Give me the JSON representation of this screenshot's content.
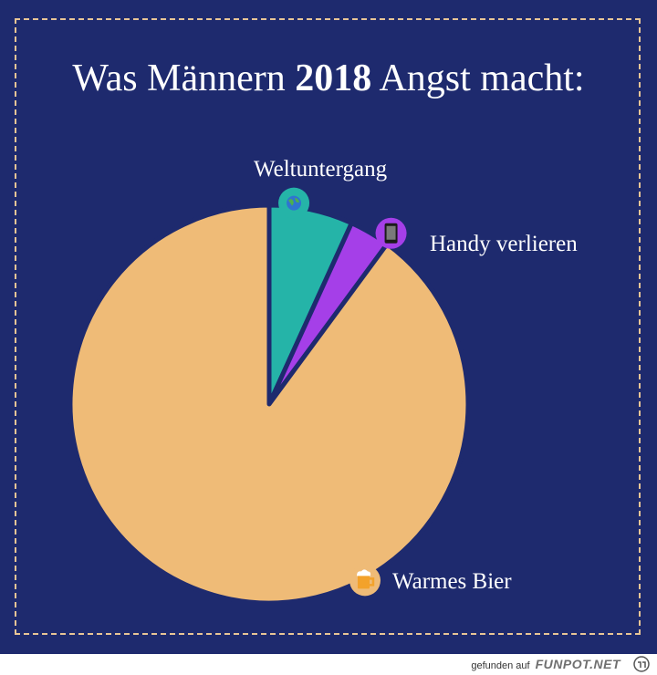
{
  "title": {
    "prefix": "Was Männern ",
    "year": "2018",
    "suffix": " Angst macht:"
  },
  "chart_data": {
    "type": "pie",
    "title": "Was Männern 2018 Angst macht:",
    "slices": [
      {
        "label": "Weltuntergang",
        "value": 6.8,
        "color": "#25b4a8",
        "icon": "globe-icon"
      },
      {
        "label": "Handy verlieren",
        "value": 3.3,
        "color": "#a53fe8",
        "icon": "phone-icon"
      },
      {
        "label": "Warmes Bier",
        "value": 89.9,
        "color": "#efbb77",
        "icon": "beer-mug-icon"
      }
    ]
  },
  "colors": {
    "background": "#1e2a6e",
    "frame": "#e8c596",
    "text": "#ffffff"
  },
  "footer": {
    "text": "gefunden auf",
    "brand": "FUNPOT.NET"
  }
}
